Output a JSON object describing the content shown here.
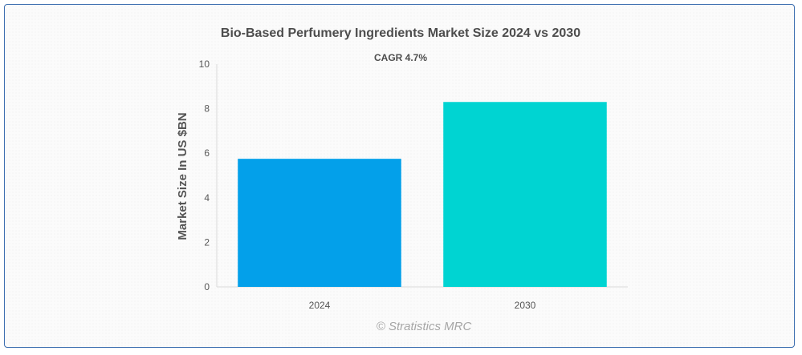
{
  "chart_data": {
    "type": "bar",
    "title": "Bio-Based Perfumery Ingredients Market Size 2024 vs 2030",
    "subtitle": "CAGR 4.7%",
    "ylabel": "Market Size In US $BN",
    "xlabel": "",
    "categories": [
      "2024",
      "2030"
    ],
    "values": [
      5.75,
      8.3
    ],
    "colors": [
      "#03a0ea",
      "#00d4d2"
    ],
    "ylim": [
      0,
      10
    ],
    "yticks": [
      "0",
      "2",
      "4",
      "6",
      "8",
      "10"
    ],
    "grid": false,
    "legend": "none"
  },
  "watermark": "© Stratistics MRC"
}
